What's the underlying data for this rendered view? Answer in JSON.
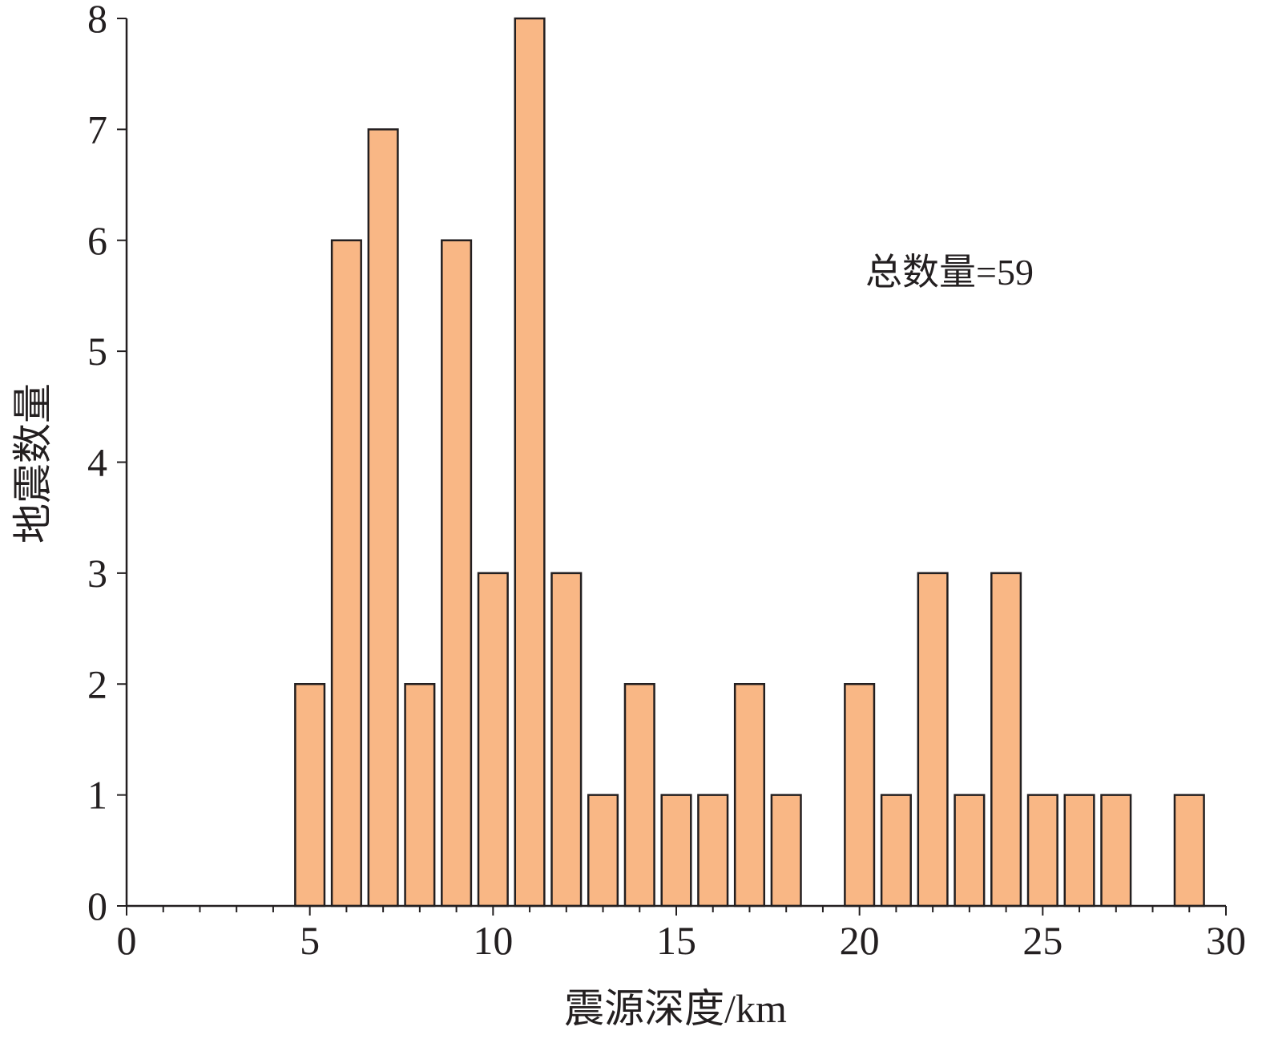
{
  "chart_data": {
    "type": "bar",
    "xlabel": "震源深度/km",
    "ylabel": "地震数量",
    "annotation": "总数量=59",
    "xlim": [
      0,
      30
    ],
    "ylim": [
      0,
      8
    ],
    "x_ticks": [
      "0",
      "5",
      "10",
      "15",
      "20",
      "25",
      "30"
    ],
    "y_ticks": [
      "0",
      "1",
      "2",
      "3",
      "4",
      "5",
      "6",
      "7",
      "8"
    ],
    "x_minor_step": 1,
    "grid": false,
    "bar_fill": "#F9B785",
    "bar_stroke": "#231F20",
    "x": [
      5,
      6,
      7,
      8,
      9,
      10,
      11,
      12,
      13,
      14,
      15,
      16,
      17,
      18,
      20,
      21,
      22,
      23,
      24,
      25,
      26,
      27,
      29
    ],
    "values": [
      2,
      6,
      7,
      2,
      6,
      3,
      8,
      3,
      1,
      2,
      1,
      1,
      2,
      1,
      2,
      1,
      3,
      1,
      3,
      1,
      1,
      1,
      1
    ]
  }
}
